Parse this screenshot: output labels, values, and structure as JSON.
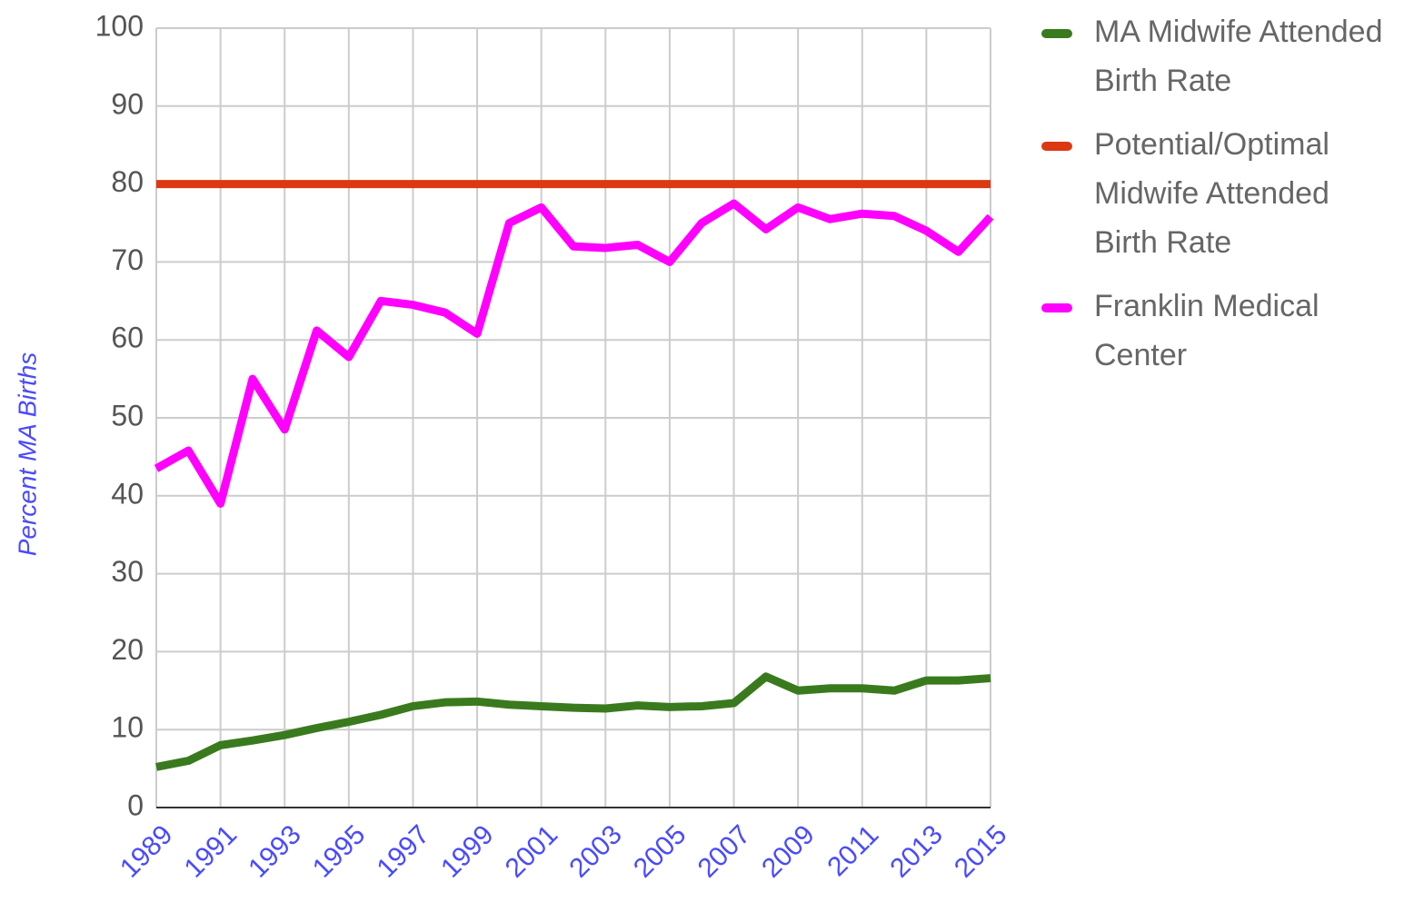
{
  "chart_data": {
    "type": "line",
    "y_label": "Percent MA Births",
    "x": [
      1989,
      1990,
      1991,
      1992,
      1993,
      1994,
      1995,
      1996,
      1997,
      1998,
      1999,
      2000,
      2001,
      2002,
      2003,
      2004,
      2005,
      2006,
      2007,
      2008,
      2009,
      2010,
      2011,
      2012,
      2013,
      2014,
      2015
    ],
    "series": [
      {
        "name": "MA Midwife Attended Birth Rate",
        "color": "#3a7a1e",
        "values": [
          5.2,
          6,
          8,
          8.6,
          9.3,
          10.2,
          11,
          11.9,
          13,
          13.5,
          13.6,
          13.2,
          13,
          12.8,
          12.7,
          13.1,
          12.9,
          13,
          13.4,
          16.8,
          15,
          15.3,
          15.3,
          15,
          16.3,
          16.3,
          16.6
        ]
      },
      {
        "name": "Potential/Optimal Midwife Attended Birth Rate",
        "color": "#dc3912",
        "values": [
          80,
          80,
          80,
          80,
          80,
          80,
          80,
          80,
          80,
          80,
          80,
          80,
          80,
          80,
          80,
          80,
          80,
          80,
          80,
          80,
          80,
          80,
          80,
          80,
          80,
          80,
          80
        ]
      },
      {
        "name": "Franklin Medical Center",
        "color": "#ff00ff",
        "values": [
          43.5,
          45.8,
          39,
          55,
          48.5,
          61.2,
          57.8,
          65,
          64.5,
          63.5,
          60.8,
          75,
          77,
          72,
          71.8,
          72.2,
          70,
          75,
          77.5,
          74.2,
          77,
          75.5,
          76.2,
          75.9,
          74,
          71.3,
          75.8
        ]
      }
    ],
    "xlim": [
      1989,
      2015
    ],
    "xticks": [
      1989,
      1991,
      1993,
      1995,
      1997,
      1999,
      2001,
      2003,
      2005,
      2007,
      2009,
      2011,
      2013,
      2015
    ],
    "ylim": [
      0,
      100
    ],
    "yticks": [
      0,
      10,
      20,
      30,
      40,
      50,
      60,
      70,
      80,
      90,
      100
    ],
    "grid": true,
    "legend": "right"
  }
}
